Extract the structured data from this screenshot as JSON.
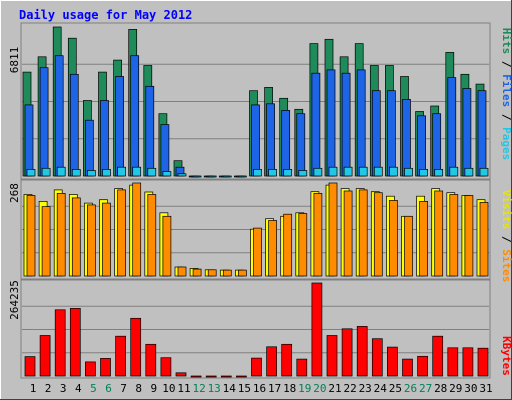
{
  "chart_data": [
    {
      "type": "bar",
      "title": "Daily usage for May 2012",
      "ymax_label": "6811",
      "side_label": [
        "Pages",
        "Files",
        "Hits"
      ],
      "categories": [
        "1",
        "2",
        "3",
        "4",
        "5",
        "6",
        "7",
        "8",
        "9",
        "10",
        "11",
        "12",
        "13",
        "14",
        "15",
        "16",
        "17",
        "18",
        "19",
        "20",
        "21",
        "22",
        "23",
        "24",
        "25",
        "26",
        "27",
        "28",
        "29",
        "30",
        "31"
      ],
      "weekend_days": [
        "5",
        "6",
        "12",
        "13",
        "19",
        "20",
        "26",
        "27"
      ],
      "series": [
        {
          "name": "Hits",
          "values": [
            4750,
            5450,
            6811,
            6300,
            3450,
            4750,
            5300,
            6700,
            5050,
            2850,
            700,
            0,
            0,
            0,
            0,
            3900,
            4050,
            3550,
            3050,
            6050,
            6250,
            5450,
            6050,
            5050,
            5050,
            4550,
            2950,
            3200,
            5650,
            4650,
            4200
          ]
        },
        {
          "name": "Files",
          "values": [
            3250,
            4950,
            5500,
            4650,
            2550,
            3450,
            4550,
            5500,
            4100,
            2350,
            400,
            0,
            0,
            0,
            0,
            3250,
            3300,
            3000,
            2850,
            4700,
            4850,
            4700,
            4850,
            3900,
            3900,
            3500,
            2750,
            2850,
            4500,
            4000,
            3900
          ]
        },
        {
          "name": "Pages",
          "values": [
            300,
            350,
            400,
            300,
            250,
            300,
            400,
            400,
            350,
            200,
            100,
            0,
            0,
            0,
            0,
            300,
            300,
            300,
            250,
            350,
            400,
            400,
            400,
            400,
            400,
            350,
            300,
            300,
            400,
            350,
            350
          ]
        }
      ],
      "colors": {
        "Hits": "#1f8b5a",
        "Files": "#1e64e6",
        "Pages": "#22c7e6"
      }
    },
    {
      "type": "bar",
      "ymax_label": "268",
      "side_label": [
        "Sites",
        "Visits"
      ],
      "series": [
        {
          "name": "Visits",
          "values": [
            235,
            215,
            248,
            235,
            210,
            220,
            252,
            262,
            242,
            182,
            26,
            22,
            18,
            17,
            17,
            135,
            165,
            172,
            182,
            243,
            262,
            252,
            252,
            243,
            230,
            172,
            230,
            252,
            240,
            232,
            220
          ]
        },
        {
          "name": "Sites",
          "values": [
            232,
            200,
            238,
            225,
            205,
            210,
            248,
            268,
            235,
            172,
            26,
            20,
            18,
            17,
            17,
            138,
            160,
            178,
            180,
            238,
            268,
            245,
            248,
            240,
            218,
            172,
            215,
            245,
            235,
            232,
            212
          ]
        }
      ],
      "colors": {
        "Visits": "#ffff00",
        "Sites": "#ff8c00"
      }
    },
    {
      "type": "bar",
      "ymax_label": "264235",
      "side_label": [
        "KBytes"
      ],
      "series": [
        {
          "name": "KBytes",
          "values": [
            55000,
            115000,
            188000,
            192000,
            40000,
            50000,
            113000,
            164000,
            90000,
            52000,
            9000,
            0,
            0,
            0,
            0,
            51000,
            83000,
            90000,
            48000,
            264235,
            115000,
            134000,
            141000,
            106000,
            82000,
            48000,
            56000,
            113000,
            80000,
            80000,
            79000
          ]
        }
      ],
      "colors": {
        "KBytes": "#ff0000"
      }
    }
  ],
  "colors": {
    "background": "#c0c0c0",
    "title": "#0000ff",
    "weekday": "#000000",
    "weekend": "#00805a"
  }
}
